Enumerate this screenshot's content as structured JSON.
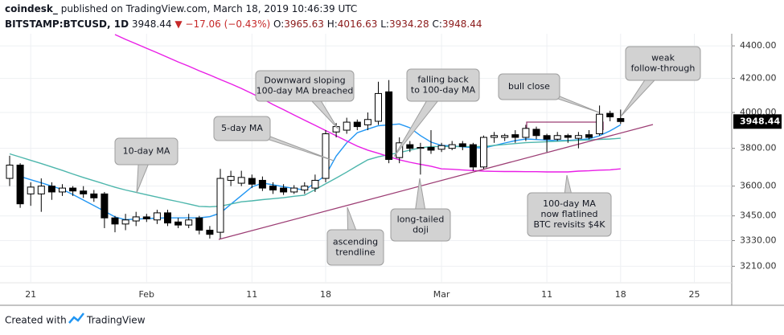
{
  "header": {
    "publisher": "coindesk_",
    "published": "published on TradingView.com, March 18, 2019 10:46:39 UTC",
    "symbol": "BITSTAMP:BTCUSD, 1D",
    "price": "3948.44",
    "change": "▼ −17.06 (−0.43%)",
    "ohlc": [
      {
        "key": "O:",
        "value": "3965.63"
      },
      {
        "key": "H:",
        "value": "4016.63"
      },
      {
        "key": "L:",
        "value": "3934.28"
      },
      {
        "key": "C:",
        "value": "3948.44"
      }
    ]
  },
  "footer": {
    "text": "Created with",
    "brand": "TradingView"
  },
  "chart_data": {
    "type": "candlestick",
    "log_scale": true,
    "grid": true,
    "categories": [
      null,
      null,
      "21",
      null,
      null,
      null,
      null,
      null,
      null,
      null,
      null,
      null,
      null,
      "Feb",
      null,
      null,
      null,
      null,
      null,
      null,
      null,
      null,
      null,
      "11",
      null,
      null,
      null,
      null,
      null,
      null,
      "18",
      null,
      null,
      null,
      null,
      null,
      null,
      null,
      null,
      null,
      null,
      "Mar",
      null,
      null,
      null,
      null,
      null,
      null,
      null,
      null,
      null,
      "11",
      null,
      null,
      null,
      null,
      null,
      null,
      "18",
      null,
      null,
      null,
      null,
      null,
      null,
      "25",
      null,
      null,
      null
    ],
    "open": [
      3640,
      3710,
      3560,
      3560,
      3600,
      3570,
      3590,
      3575,
      3560,
      3560,
      3440,
      3410,
      3425,
      3445,
      3430,
      3465,
      3420,
      3405,
      3440,
      3380,
      3370,
      3630,
      3615,
      3640,
      3630,
      3600,
      3590,
      3570,
      3580,
      3590,
      3640,
      3890,
      3900,
      3945,
      3930,
      3950,
      4120,
      3750,
      3820,
      3800,
      3805,
      3795,
      3800,
      3825,
      3820,
      3700,
      3860,
      3860,
      3875,
      3860,
      3905,
      3870,
      3850,
      3870,
      3855,
      3875,
      3880,
      3995,
      3965.63,
      null,
      null,
      null,
      null,
      null,
      null,
      null,
      null,
      null,
      null
    ],
    "high": [
      3760,
      3720,
      3620,
      3640,
      3620,
      3610,
      3600,
      3600,
      3580,
      3570,
      3450,
      3460,
      3470,
      3460,
      3480,
      3480,
      3440,
      3460,
      3450,
      3400,
      3690,
      3680,
      3680,
      3660,
      3650,
      3620,
      3610,
      3605,
      3620,
      3660,
      3900,
      3940,
      3970,
      3960,
      4000,
      4180,
      4190,
      3860,
      3840,
      3830,
      3900,
      3830,
      3840,
      3840,
      3830,
      3870,
      3890,
      3880,
      3900,
      3930,
      3920,
      3880,
      3890,
      3880,
      3890,
      3900,
      4040,
      4010,
      4016.63,
      null,
      null,
      null,
      null,
      null,
      null,
      null,
      null,
      null,
      null
    ],
    "low": [
      3600,
      3490,
      3500,
      3470,
      3530,
      3550,
      3550,
      3540,
      3520,
      3390,
      3370,
      3380,
      3400,
      3420,
      3410,
      3400,
      3390,
      3390,
      3360,
      3340,
      3340,
      3600,
      3600,
      3590,
      3575,
      3560,
      3555,
      3560,
      3560,
      3570,
      3620,
      3860,
      3880,
      3900,
      3900,
      3930,
      3720,
      3720,
      3780,
      3660,
      3770,
      3780,
      3790,
      3790,
      3680,
      3690,
      3830,
      3840,
      3830,
      3840,
      3850,
      3780,
      3840,
      3830,
      3800,
      3850,
      3870,
      3950,
      3934.28,
      null,
      null,
      null,
      null,
      null,
      null,
      null,
      null,
      null,
      null
    ],
    "close": [
      3710,
      3510,
      3595,
      3600,
      3570,
      3590,
      3575,
      3560,
      3540,
      3440,
      3410,
      3430,
      3445,
      3435,
      3465,
      3415,
      3405,
      3430,
      3380,
      3360,
      3640,
      3650,
      3645,
      3610,
      3590,
      3580,
      3570,
      3590,
      3600,
      3630,
      3880,
      3920,
      3945,
      3920,
      3960,
      4110,
      3740,
      3830,
      3800,
      3805,
      3790,
      3815,
      3820,
      3810,
      3700,
      3860,
      3870,
      3870,
      3860,
      3910,
      3870,
      3850,
      3870,
      3860,
      3870,
      3860,
      3990,
      3975,
      3948.44,
      null,
      null,
      null,
      null,
      null,
      null,
      null,
      null,
      null,
      null
    ],
    "up_color": "#ffffff",
    "down_color": "#000000",
    "outline_color": "#000000",
    "overlays": [
      {
        "color": "#2196f3",
        "values": [
          null,
          3650,
          3633,
          3617,
          3600,
          3583,
          3557,
          3529,
          3501,
          3473,
          3445,
          3431,
          3434,
          3436,
          3439,
          3440,
          3440,
          3440,
          3440,
          3446,
          3464,
          3508,
          3552,
          3596,
          3616,
          3607,
          3597,
          3588,
          3580,
          3616,
          3656,
          3758,
          3830,
          3886,
          3906,
          3925,
          3930,
          3935,
          3913,
          3870,
          3834,
          3816,
          3813,
          3808,
          3804,
          3802,
          3815,
          3829,
          3842,
          3851,
          3848,
          3845,
          3842,
          3843,
          3847,
          3852,
          3869,
          3896,
          3930,
          null,
          null,
          null,
          null,
          null,
          null,
          null,
          null,
          null,
          null
        ]
      },
      {
        "color": "#4db6ac",
        "values": [
          3770,
          3753,
          3735,
          3718,
          3700,
          3682,
          3663,
          3645,
          3628,
          3611,
          3594,
          3580,
          3568,
          3556,
          3544,
          3532,
          3521,
          3509,
          3497,
          3495,
          3498,
          3509,
          3520,
          3525,
          3531,
          3536,
          3541,
          3548,
          3554,
          3582,
          3612,
          3642,
          3673,
          3706,
          3738,
          3754,
          3766,
          3777,
          3790,
          3803,
          3810,
          3810,
          3810,
          3810,
          3810,
          3810,
          3816,
          3821,
          3826,
          3831,
          3833,
          3836,
          3839,
          3841,
          3844,
          3846,
          3849,
          3851,
          3855,
          null,
          null,
          null,
          null,
          null,
          null,
          null,
          null,
          null,
          null
        ]
      },
      {
        "color": "#e91ee6",
        "values": [
          null,
          null,
          null,
          null,
          null,
          null,
          null,
          null,
          null,
          null,
          4472,
          4441,
          4413,
          4385,
          4357,
          4328,
          4300,
          4274,
          4246,
          4220,
          4193,
          4167,
          4140,
          4110,
          4079,
          4046,
          4016,
          3986,
          3956,
          3927,
          3898,
          3869,
          3840,
          3812,
          3790,
          3773,
          3755,
          3738,
          3725,
          3714,
          3704,
          3690,
          3688,
          3684,
          3681,
          3678,
          3677,
          3676,
          3676,
          3675,
          3675,
          3674,
          3674,
          3674,
          3678,
          3680,
          3683,
          3685,
          3690,
          null,
          null,
          null,
          null,
          null,
          null,
          null,
          null,
          null,
          null
        ]
      }
    ],
    "ylim": [
      3135,
      4477
    ],
    "yticks": [
      {
        "value": 3210,
        "label": "3210.00"
      },
      {
        "value": 3330,
        "label": "3330.00"
      },
      {
        "value": 3450,
        "label": "3450.00"
      },
      {
        "value": 3600,
        "label": "3600.00"
      },
      {
        "value": 3800,
        "label": "3800.00"
      },
      {
        "value": 4000,
        "label": "4000.00"
      },
      {
        "value": 4200,
        "label": "4200.00"
      },
      {
        "value": 4400,
        "label": "4400.00"
      }
    ],
    "last_price": {
      "value": 3948.44,
      "label": "3948.44"
    },
    "annotations": [
      {
        "lines": [
          "10-day MA"
        ]
      },
      {
        "lines": [
          "5-day MA"
        ]
      },
      {
        "lines": [
          "Downward sloping",
          "100-day MA breached"
        ]
      },
      {
        "lines": [
          "falling back",
          "to 100-day MA"
        ]
      },
      {
        "lines": [
          "bull close"
        ]
      },
      {
        "lines": [
          "weak",
          "follow-through"
        ]
      },
      {
        "lines": [
          "100-day MA",
          "now flatlined",
          "BTC revisits $4K"
        ]
      },
      {
        "lines": [
          "long-tailed",
          "doji"
        ]
      },
      {
        "lines": [
          "ascending",
          "trendline"
        ]
      }
    ]
  }
}
